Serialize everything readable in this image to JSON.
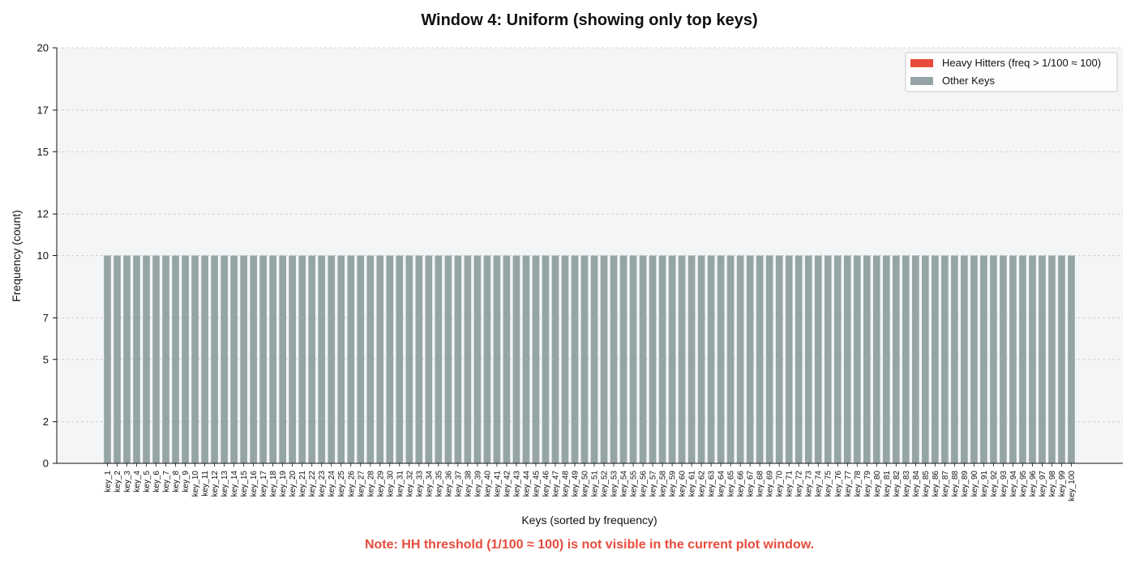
{
  "chart_data": {
    "type": "bar",
    "title": "Window 4: Uniform (showing only top keys)",
    "xlabel": "Keys (sorted by frequency)",
    "ylabel": "Frequency (count)",
    "ylim": [
      0,
      20
    ],
    "yticks": [
      0,
      2,
      5,
      7,
      10,
      12,
      15,
      17,
      20
    ],
    "grid": "horizontal dashed",
    "legend_position": "top-right",
    "legend": [
      {
        "label": "Heavy Hitters (freq > 1/100 ≈ 100)",
        "color": "#e74c3c"
      },
      {
        "label": "Other Keys",
        "color": "#95a5a6"
      }
    ],
    "bar_color": "#95a5a6",
    "categories": [
      "key_1",
      "key_2",
      "key_3",
      "key_4",
      "key_5",
      "key_6",
      "key_7",
      "key_8",
      "key_9",
      "key_10",
      "key_11",
      "key_12",
      "key_13",
      "key_14",
      "key_15",
      "key_16",
      "key_17",
      "key_18",
      "key_19",
      "key_20",
      "key_21",
      "key_22",
      "key_23",
      "key_24",
      "key_25",
      "key_26",
      "key_27",
      "key_28",
      "key_29",
      "key_30",
      "key_31",
      "key_32",
      "key_33",
      "key_34",
      "key_35",
      "key_36",
      "key_37",
      "key_38",
      "key_39",
      "key_40",
      "key_41",
      "key_42",
      "key_43",
      "key_44",
      "key_45",
      "key_46",
      "key_47",
      "key_48",
      "key_49",
      "key_50",
      "key_51",
      "key_52",
      "key_53",
      "key_54",
      "key_55",
      "key_56",
      "key_57",
      "key_58",
      "key_59",
      "key_60",
      "key_61",
      "key_62",
      "key_63",
      "key_64",
      "key_65",
      "key_66",
      "key_67",
      "key_68",
      "key_69",
      "key_70",
      "key_71",
      "key_72",
      "key_73",
      "key_74",
      "key_75",
      "key_76",
      "key_77",
      "key_78",
      "key_79",
      "key_80",
      "key_81",
      "key_82",
      "key_83",
      "key_84",
      "key_85",
      "key_86",
      "key_87",
      "key_88",
      "key_89",
      "key_90",
      "key_91",
      "key_92",
      "key_93",
      "key_94",
      "key_95",
      "key_96",
      "key_97",
      "key_98",
      "key_99",
      "key_100"
    ],
    "values": [
      10,
      10,
      10,
      10,
      10,
      10,
      10,
      10,
      10,
      10,
      10,
      10,
      10,
      10,
      10,
      10,
      10,
      10,
      10,
      10,
      10,
      10,
      10,
      10,
      10,
      10,
      10,
      10,
      10,
      10,
      10,
      10,
      10,
      10,
      10,
      10,
      10,
      10,
      10,
      10,
      10,
      10,
      10,
      10,
      10,
      10,
      10,
      10,
      10,
      10,
      10,
      10,
      10,
      10,
      10,
      10,
      10,
      10,
      10,
      10,
      10,
      10,
      10,
      10,
      10,
      10,
      10,
      10,
      10,
      10,
      10,
      10,
      10,
      10,
      10,
      10,
      10,
      10,
      10,
      10,
      10,
      10,
      10,
      10,
      10,
      10,
      10,
      10,
      10,
      10,
      10,
      10,
      10,
      10,
      10,
      10,
      10,
      10,
      10,
      10
    ],
    "note": "Note: HH threshold (1/100 ≈ 100) is not visible in the current plot window.",
    "note_color": "#e74c3c"
  }
}
